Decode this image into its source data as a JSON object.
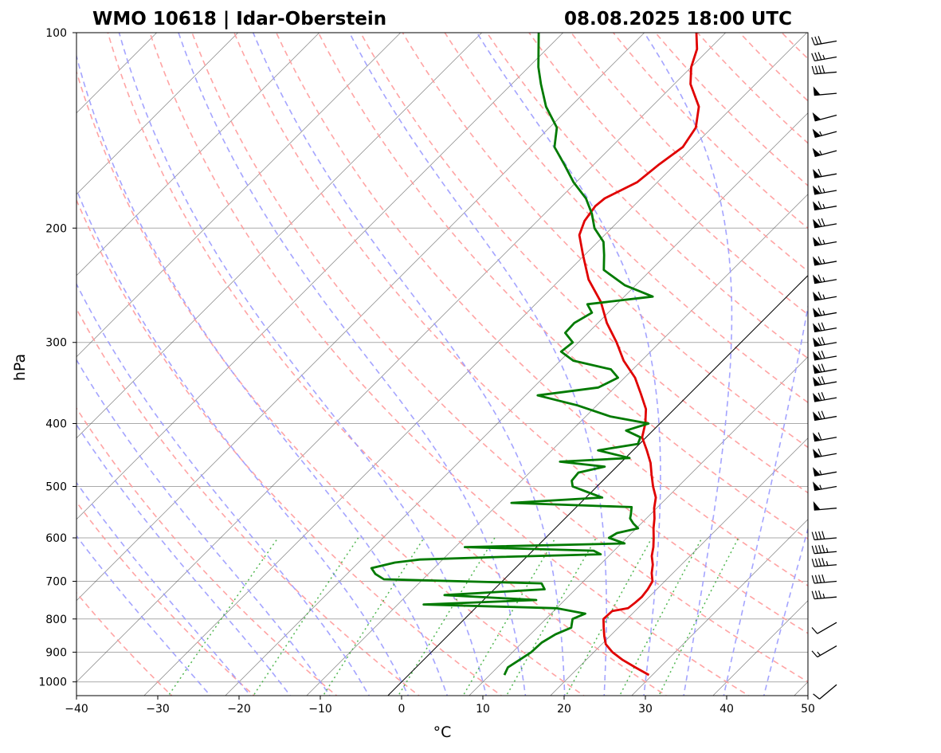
{
  "title_left": "WMO 10618 | Idar-Oberstein",
  "title_right": "08.08.2025 18:00 UTC",
  "colors": {
    "temperature": "#e00000",
    "dewpoint": "#007a00",
    "dry_adiabat": "#ff9a9a",
    "moist_adiabat": "#9a9aff",
    "mixing_ratio": "#33aa33",
    "isotherm": "#555555",
    "grid": "#aaaaaa",
    "zero_isotherm": "#000000",
    "wind_barb": "#000000"
  },
  "chart_data": {
    "type": "skew-t log-p",
    "xlabel": "°C",
    "ylabel": "hPa",
    "xlim": [
      -40,
      50
    ],
    "ylim": [
      1050,
      100
    ],
    "x_ticks": [
      -40,
      -30,
      -20,
      -10,
      0,
      10,
      20,
      30,
      40,
      50
    ],
    "x_tick_labels": [
      "−40",
      "−30",
      "−20",
      "−10",
      "0",
      "10",
      "20",
      "30",
      "40",
      "50"
    ],
    "y_ticks": [
      1000,
      900,
      800,
      700,
      600,
      500,
      400,
      300,
      200,
      100
    ],
    "y_tick_labels": [
      "1000",
      "900",
      "800",
      "700",
      "600",
      "500",
      "400",
      "300",
      "200",
      "100"
    ],
    "grid": true,
    "series": [
      {
        "key": "temperature",
        "points": [
          [
            976,
            29.6
          ],
          [
            950,
            27.0
          ],
          [
            925,
            24.5
          ],
          [
            900,
            22.3
          ],
          [
            875,
            20.5
          ],
          [
            850,
            19.3
          ],
          [
            825,
            18.2
          ],
          [
            800,
            17.1
          ],
          [
            778,
            17.2
          ],
          [
            770,
            18.8
          ],
          [
            755,
            19.0
          ],
          [
            740,
            19.1
          ],
          [
            720,
            18.9
          ],
          [
            700,
            18.5
          ],
          [
            680,
            17.4
          ],
          [
            660,
            16.5
          ],
          [
            640,
            15.3
          ],
          [
            620,
            14.4
          ],
          [
            600,
            13.3
          ],
          [
            580,
            12.1
          ],
          [
            560,
            11.0
          ],
          [
            540,
            9.7
          ],
          [
            520,
            8.6
          ],
          [
            500,
            6.9
          ],
          [
            480,
            5.3
          ],
          [
            460,
            3.7
          ],
          [
            440,
            1.7
          ],
          [
            420,
            -0.5
          ],
          [
            400,
            -1.8
          ],
          [
            380,
            -3.5
          ],
          [
            360,
            -6.0
          ],
          [
            340,
            -8.7
          ],
          [
            320,
            -12.2
          ],
          [
            300,
            -15.3
          ],
          [
            280,
            -18.9
          ],
          [
            260,
            -22.2
          ],
          [
            240,
            -26.5
          ],
          [
            220,
            -30.2
          ],
          [
            205,
            -33.1
          ],
          [
            195,
            -34.2
          ],
          [
            185,
            -34.7
          ],
          [
            180,
            -34.5
          ],
          [
            170,
            -32.5
          ],
          [
            160,
            -32.0
          ],
          [
            150,
            -31.2
          ],
          [
            140,
            -32.0
          ],
          [
            130,
            -34.2
          ],
          [
            120,
            -38.0
          ],
          [
            113,
            -40.0
          ],
          [
            106,
            -41.5
          ],
          [
            100,
            -43.6
          ]
        ]
      },
      {
        "key": "dewpoint",
        "points": [
          [
            976,
            11.8
          ],
          [
            950,
            11.3
          ],
          [
            925,
            11.8
          ],
          [
            900,
            12.3
          ],
          [
            870,
            12.4
          ],
          [
            845,
            13.1
          ],
          [
            825,
            14.2
          ],
          [
            800,
            13.3
          ],
          [
            785,
            14.2
          ],
          [
            770,
            10.0
          ],
          [
            760,
            -6.8
          ],
          [
            748,
            6.5
          ],
          [
            735,
            -5.4
          ],
          [
            720,
            6.2
          ],
          [
            705,
            5.1
          ],
          [
            695,
            -14.8
          ],
          [
            682,
            -16.5
          ],
          [
            668,
            -17.7
          ],
          [
            655,
            -15.5
          ],
          [
            648,
            -12.8
          ],
          [
            642,
            -3.0
          ],
          [
            636,
            8.8
          ],
          [
            628,
            7.5
          ],
          [
            620,
            -8.8
          ],
          [
            612,
            10.4
          ],
          [
            600,
            7.8
          ],
          [
            590,
            8.2
          ],
          [
            580,
            10.2
          ],
          [
            570,
            9.0
          ],
          [
            560,
            8.0
          ],
          [
            552,
            7.6
          ],
          [
            538,
            6.8
          ],
          [
            530,
            -8.5
          ],
          [
            520,
            2.0
          ],
          [
            510,
            -0.5
          ],
          [
            500,
            -3.0
          ],
          [
            490,
            -3.8
          ],
          [
            476,
            -4.0
          ],
          [
            466,
            -1.5
          ],
          [
            458,
            -7.6
          ],
          [
            452,
            0.5
          ],
          [
            440,
            -4.3
          ],
          [
            430,
            -0.2
          ],
          [
            420,
            -0.7
          ],
          [
            410,
            -3.3
          ],
          [
            400,
            -1.4
          ],
          [
            390,
            -7.0
          ],
          [
            375,
            -12.4
          ],
          [
            362,
            -18.5
          ],
          [
            352,
            -12.0
          ],
          [
            340,
            -10.8
          ],
          [
            330,
            -12.7
          ],
          [
            320,
            -18.4
          ],
          [
            310,
            -21.0
          ],
          [
            300,
            -20.7
          ],
          [
            290,
            -22.8
          ],
          [
            280,
            -22.9
          ],
          [
            270,
            -22.0
          ],
          [
            262,
            -23.6
          ],
          [
            255,
            -16.5
          ],
          [
            245,
            -21.3
          ],
          [
            232,
            -25.8
          ],
          [
            220,
            -27.6
          ],
          [
            210,
            -29.3
          ],
          [
            200,
            -32.1
          ],
          [
            190,
            -34.2
          ],
          [
            180,
            -36.8
          ],
          [
            170,
            -40.3
          ],
          [
            160,
            -43.5
          ],
          [
            150,
            -47.0
          ],
          [
            140,
            -49.1
          ],
          [
            130,
            -53.0
          ],
          [
            120,
            -56.4
          ],
          [
            113,
            -58.8
          ],
          [
            106,
            -61.0
          ],
          [
            100,
            -63.0
          ]
        ]
      }
    ],
    "wind_barbs": [
      {
        "pressure": 1010,
        "dir": 230,
        "speed_kt": 10
      },
      {
        "pressure": 880,
        "dir": 240,
        "speed_kt": 15
      },
      {
        "pressure": 810,
        "dir": 240,
        "speed_kt": 10
      },
      {
        "pressure": 740,
        "dir": 265,
        "speed_kt": 35
      },
      {
        "pressure": 700,
        "dir": 265,
        "speed_kt": 40
      },
      {
        "pressure": 660,
        "dir": 265,
        "speed_kt": 45
      },
      {
        "pressure": 630,
        "dir": 265,
        "speed_kt": 45
      },
      {
        "pressure": 600,
        "dir": 265,
        "speed_kt": 40
      },
      {
        "pressure": 540,
        "dir": 265,
        "speed_kt": 50
      },
      {
        "pressure": 500,
        "dir": 260,
        "speed_kt": 55
      },
      {
        "pressure": 475,
        "dir": 260,
        "speed_kt": 55
      },
      {
        "pressure": 445,
        "dir": 260,
        "speed_kt": 60
      },
      {
        "pressure": 420,
        "dir": 260,
        "speed_kt": 60
      },
      {
        "pressure": 390,
        "dir": 260,
        "speed_kt": 70
      },
      {
        "pressure": 365,
        "dir": 260,
        "speed_kt": 70
      },
      {
        "pressure": 345,
        "dir": 260,
        "speed_kt": 70
      },
      {
        "pressure": 330,
        "dir": 260,
        "speed_kt": 70
      },
      {
        "pressure": 315,
        "dir": 260,
        "speed_kt": 70
      },
      {
        "pressure": 300,
        "dir": 260,
        "speed_kt": 70
      },
      {
        "pressure": 285,
        "dir": 260,
        "speed_kt": 70
      },
      {
        "pressure": 270,
        "dir": 260,
        "speed_kt": 65
      },
      {
        "pressure": 255,
        "dir": 260,
        "speed_kt": 65
      },
      {
        "pressure": 240,
        "dir": 260,
        "speed_kt": 65
      },
      {
        "pressure": 225,
        "dir": 260,
        "speed_kt": 65
      },
      {
        "pressure": 210,
        "dir": 260,
        "speed_kt": 65
      },
      {
        "pressure": 197,
        "dir": 260,
        "speed_kt": 70
      },
      {
        "pressure": 185,
        "dir": 260,
        "speed_kt": 65
      },
      {
        "pressure": 175,
        "dir": 260,
        "speed_kt": 65
      },
      {
        "pressure": 165,
        "dir": 260,
        "speed_kt": 60
      },
      {
        "pressure": 152,
        "dir": 255,
        "speed_kt": 55
      },
      {
        "pressure": 142,
        "dir": 255,
        "speed_kt": 55
      },
      {
        "pressure": 134,
        "dir": 255,
        "speed_kt": 50
      },
      {
        "pressure": 124,
        "dir": 265,
        "speed_kt": 50
      },
      {
        "pressure": 115,
        "dir": 265,
        "speed_kt": 40
      },
      {
        "pressure": 109,
        "dir": 260,
        "speed_kt": 35
      },
      {
        "pressure": 103,
        "dir": 260,
        "speed_kt": 30
      }
    ]
  }
}
